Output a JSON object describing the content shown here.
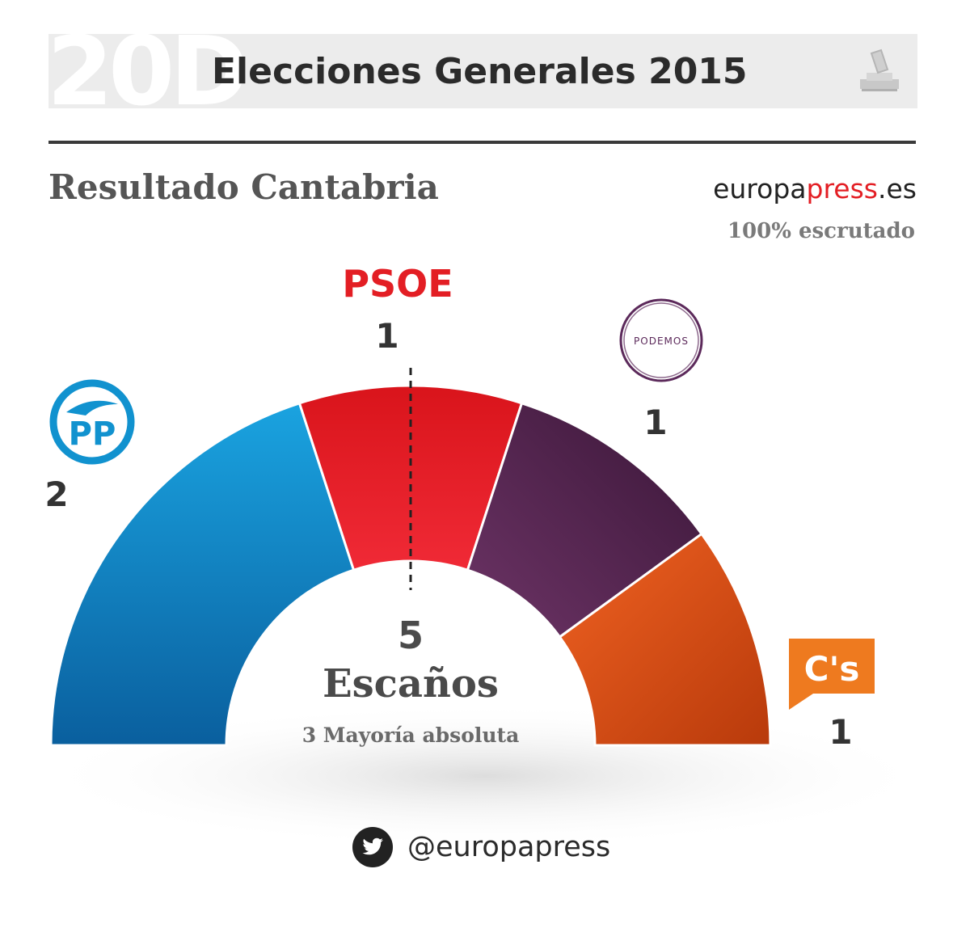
{
  "header": {
    "logo_text": "20D",
    "title": "Elecciones Generales 2015"
  },
  "subtitle": "Resultado Cantabria",
  "brand": {
    "part1": "europa",
    "part2": "press",
    "part3": ".es"
  },
  "scrutiny": "100% escrutado",
  "colors": {
    "PP": "#1192cf",
    "PSOE": "#e31e24",
    "Podemos": "#5c2a5b",
    "Cs": "#ea5c1c"
  },
  "chart_data": {
    "type": "pie",
    "subtype": "parliament-half-donut",
    "categories": [
      "PP",
      "PSOE",
      "Podemos",
      "C's"
    ],
    "values": [
      2,
      1,
      1,
      1
    ],
    "series": [
      {
        "values": [
          2,
          1,
          1,
          1
        ]
      }
    ],
    "total": 5,
    "total_label": "Escaños",
    "majority_value": 3,
    "majority_label": "3 Mayoría absoluta",
    "party_labels": {
      "PSOE": "PSOE",
      "Podemos_logo": "PODEMOS",
      "PP_logo": "PP",
      "Cs_logo": "C's"
    }
  },
  "footer": {
    "twitter_handle": "@europapress"
  }
}
